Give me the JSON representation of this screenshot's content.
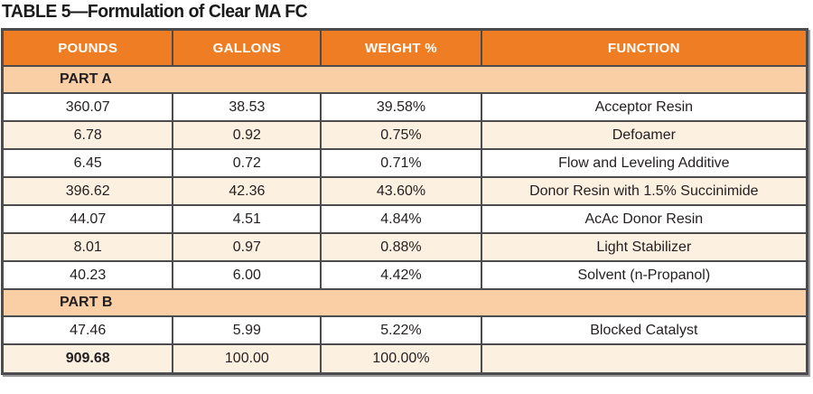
{
  "title": "TABLE 5—Formulation of Clear MA FC",
  "colors": {
    "orange_header": "#EE7D23",
    "section_band": "#FACFA5",
    "alt_row_cream": "#FCF1E0",
    "border_gray": "#4C4C4E",
    "text": "#231F20"
  },
  "table": {
    "columns": [
      "POUNDS",
      "GALLONS",
      "WEIGHT %",
      "FUNCTION"
    ],
    "rows": [
      {
        "type": "section",
        "label": "PART A"
      },
      {
        "type": "data",
        "cells": [
          "360.07",
          "38.53",
          "39.58%",
          "Acceptor Resin"
        ]
      },
      {
        "type": "data",
        "cells": [
          "6.78",
          "0.92",
          "0.75%",
          "Defoamer"
        ]
      },
      {
        "type": "data",
        "cells": [
          "6.45",
          "0.72",
          "0.71%",
          "Flow and Leveling Additive"
        ]
      },
      {
        "type": "data",
        "cells": [
          "396.62",
          "42.36",
          "43.60%",
          "Donor Resin with 1.5% Succinimide"
        ]
      },
      {
        "type": "data",
        "cells": [
          "44.07",
          "4.51",
          "4.84%",
          "AcAc Donor Resin"
        ]
      },
      {
        "type": "data",
        "cells": [
          "8.01",
          "0.97",
          "0.88%",
          "Light Stabilizer"
        ]
      },
      {
        "type": "data",
        "cells": [
          "40.23",
          "6.00",
          "4.42%",
          "Solvent (n-Propanol)"
        ]
      },
      {
        "type": "section",
        "label": "PART B"
      },
      {
        "type": "data",
        "cells": [
          "47.46",
          "5.99",
          "5.22%",
          "Blocked Catalyst"
        ]
      }
    ],
    "total_row": {
      "pounds": "909.68",
      "gallons": "100.00",
      "weight_pct": "100.00%",
      "function": ""
    }
  }
}
